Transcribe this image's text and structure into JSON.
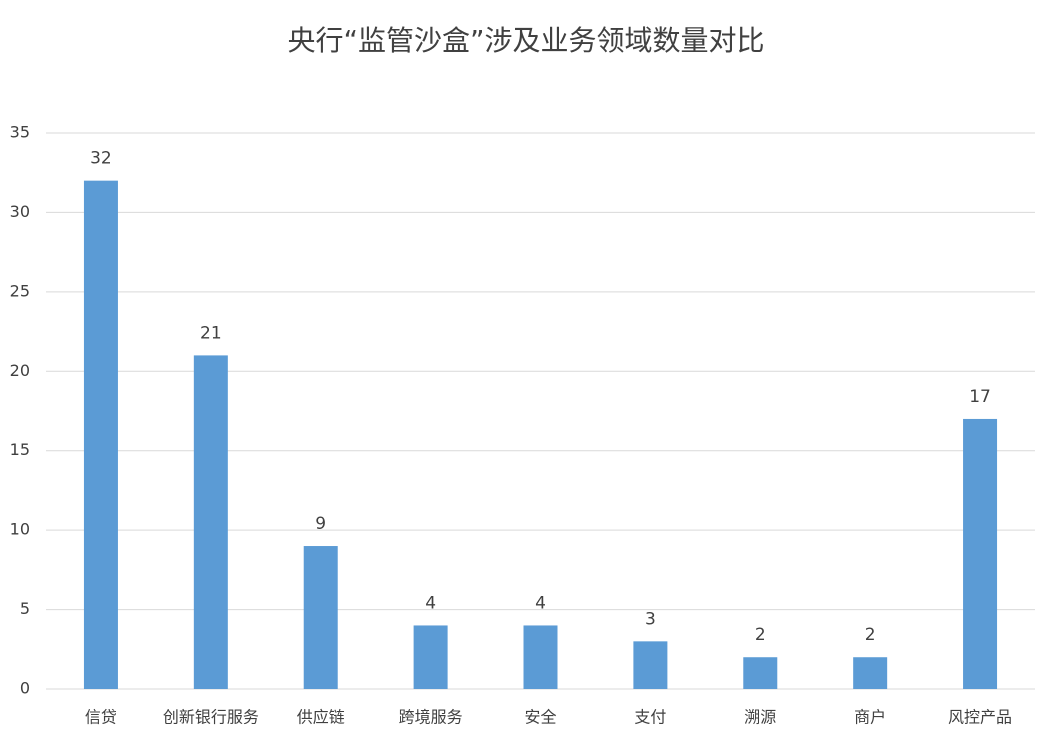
{
  "chart_data": {
    "type": "bar",
    "title": "央行“监管沙盒”涉及业务领域数量对比",
    "categories": [
      "信贷",
      "创新银行服务",
      "供应链",
      "跨境服务",
      "安全",
      "支付",
      "溯源",
      "商户",
      "风控产品"
    ],
    "values": [
      32,
      21,
      9,
      4,
      4,
      3,
      2,
      2,
      17
    ],
    "color": "#5b9bd5",
    "ylim": [
      0,
      35
    ],
    "yticks": [
      0,
      5,
      10,
      15,
      20,
      25,
      30,
      35
    ],
    "grid": true
  }
}
